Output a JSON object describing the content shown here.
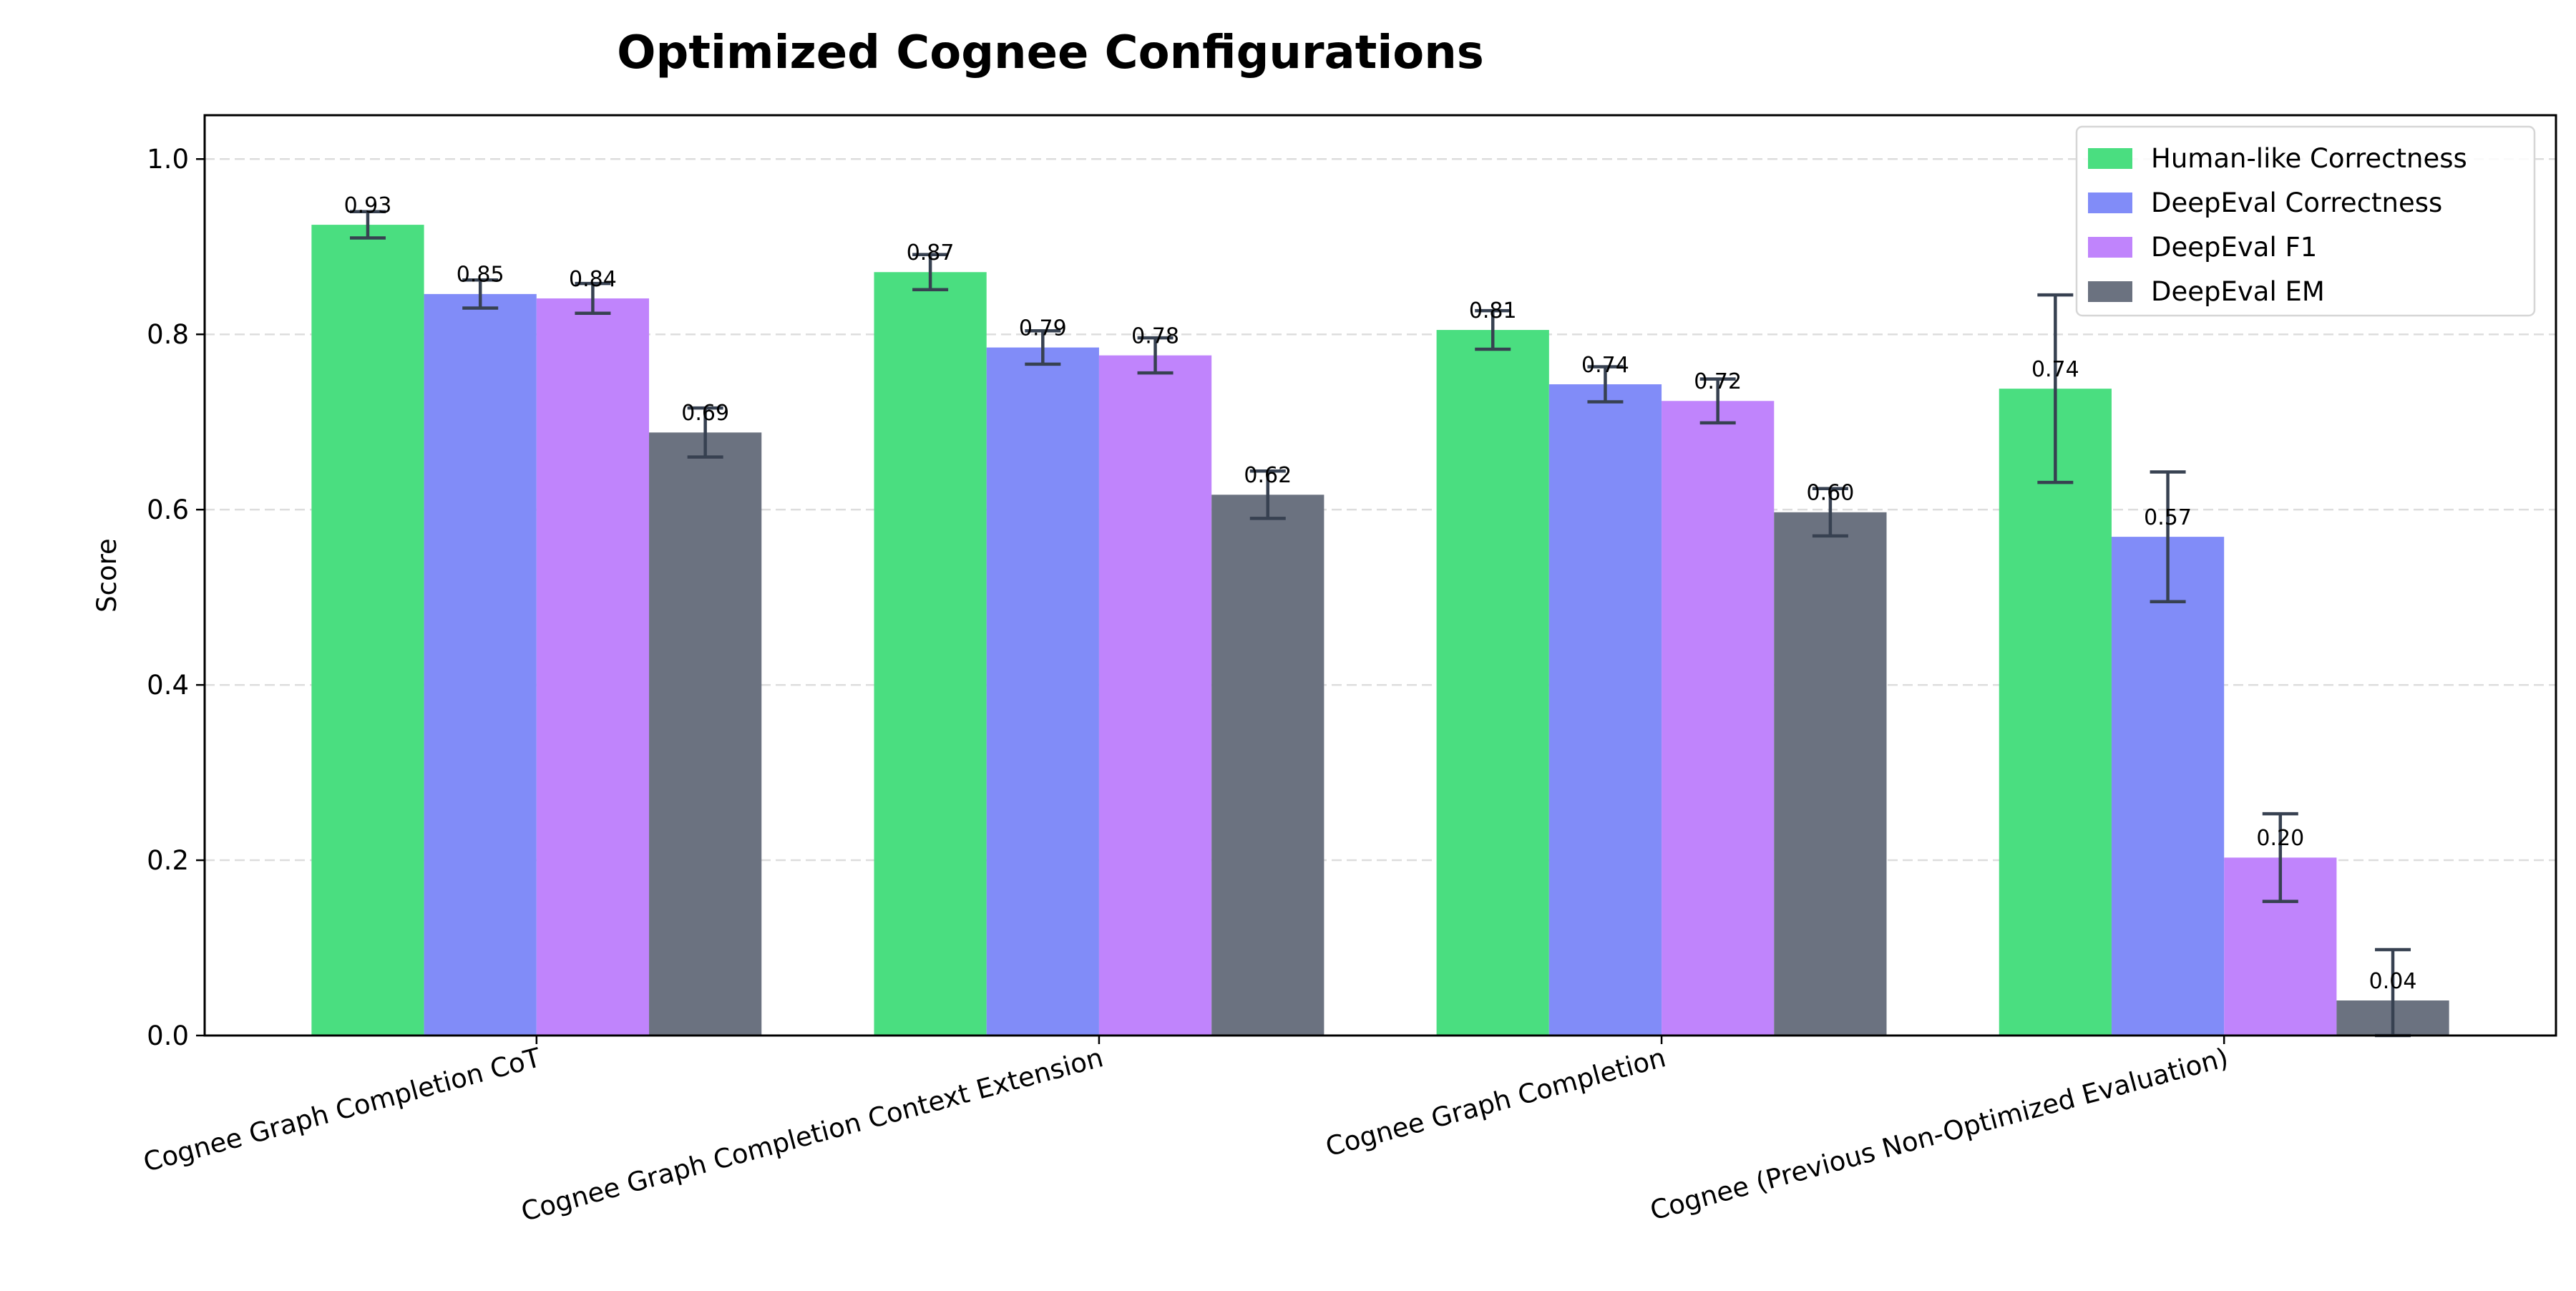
{
  "chart_data": {
    "type": "bar",
    "title": "Optimized Cognee Configurations",
    "xlabel": "",
    "ylabel": "Score",
    "ylim": [
      0,
      1.05
    ],
    "yticks": [
      0.0,
      0.2,
      0.4,
      0.6,
      0.8,
      1.0
    ],
    "grid": "y-dashed",
    "legend_position": "top-right",
    "categories": [
      "Cognee Graph Completion CoT",
      "Cognee Graph Completion Context Extension",
      "Cognee Graph Completion",
      "Cognee (Previous Non-Optimized Evaluation)"
    ],
    "series": [
      {
        "name": "Human-like Correctness",
        "color": "#4ade80",
        "values": [
          0.925,
          0.871,
          0.805,
          0.738
        ],
        "errors": [
          0.015,
          0.02,
          0.022,
          0.107
        ],
        "labels": [
          "0.93",
          "0.87",
          "0.81",
          "0.74"
        ]
      },
      {
        "name": "DeepEval Correctness",
        "color": "#818cf8",
        "values": [
          0.846,
          0.785,
          0.743,
          0.569
        ],
        "errors": [
          0.016,
          0.019,
          0.02,
          0.074
        ],
        "labels": [
          "0.85",
          "0.79",
          "0.74",
          "0.57"
        ]
      },
      {
        "name": "DeepEval F1",
        "color": "#c084fc",
        "values": [
          0.841,
          0.776,
          0.724,
          0.203
        ],
        "errors": [
          0.017,
          0.02,
          0.025,
          0.05
        ],
        "labels": [
          "0.84",
          "0.78",
          "0.72",
          "0.20"
        ]
      },
      {
        "name": "DeepEval EM",
        "color": "#6b7280",
        "values": [
          0.688,
          0.617,
          0.597,
          0.04
        ],
        "errors": [
          0.028,
          0.027,
          0.027,
          0.058
        ],
        "labels": [
          "0.69",
          "0.62",
          "0.60",
          "0.04"
        ]
      }
    ],
    "error_bar_color": "#374151"
  }
}
